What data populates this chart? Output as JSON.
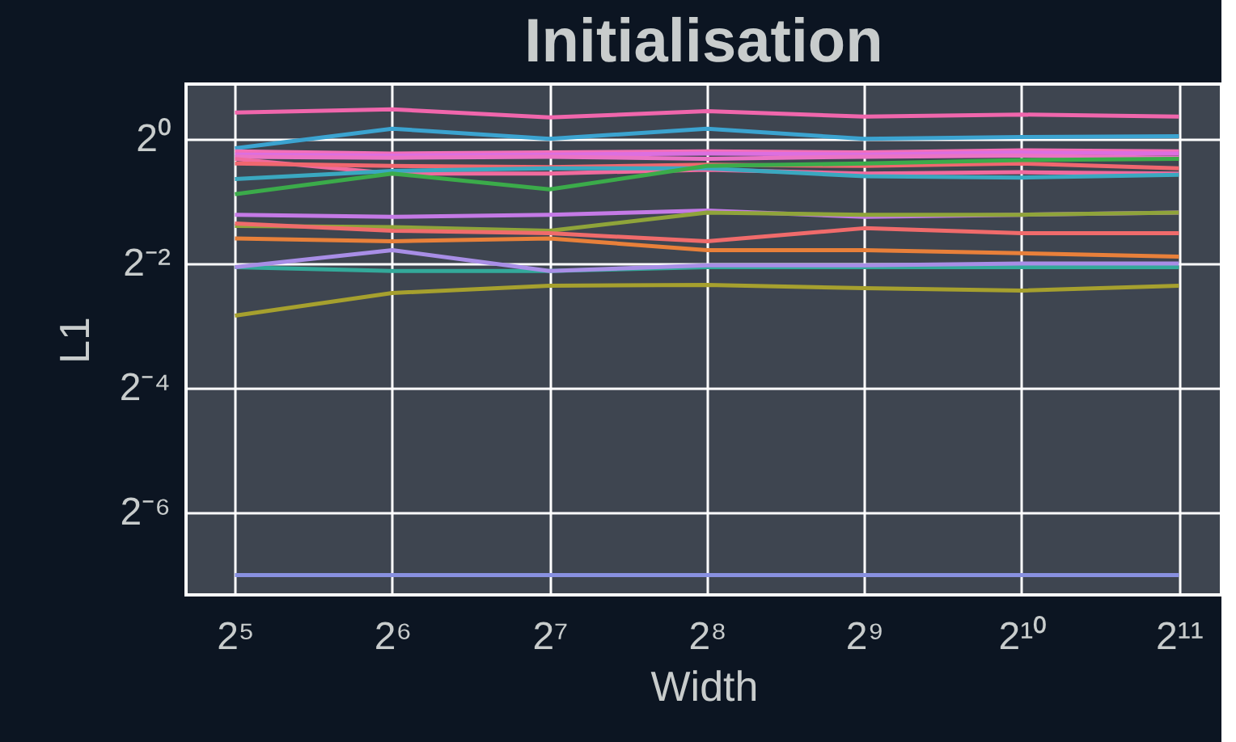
{
  "chart_data": {
    "type": "line",
    "title": "Initialisation",
    "xlabel": "Width",
    "ylabel": "L1",
    "x": [
      32,
      64,
      128,
      256,
      512,
      1024,
      2048
    ],
    "log": "xy",
    "grid": true,
    "legend": false,
    "marker": "none",
    "line_style": "solid",
    "xlim": [
      25.8,
      2470
    ],
    "ylim": [
      0.00626,
      1.84
    ],
    "xticks": [
      {
        "value": 32,
        "label": "2⁵"
      },
      {
        "value": 64,
        "label": "2⁶"
      },
      {
        "value": 128,
        "label": "2⁷"
      },
      {
        "value": 256,
        "label": "2⁸"
      },
      {
        "value": 512,
        "label": "2⁹"
      },
      {
        "value": 1024,
        "label": "2¹⁰"
      },
      {
        "value": 2048,
        "label": "2¹¹"
      }
    ],
    "yticks": [
      {
        "value": 0.015625,
        "label": "2⁻⁶"
      },
      {
        "value": 0.0625,
        "label": "2⁻⁴"
      },
      {
        "value": 0.25,
        "label": "2⁻²"
      },
      {
        "value": 1,
        "label": "2⁰"
      }
    ],
    "series": [
      {
        "color": "#f066ac",
        "values": [
          1.34,
          1.39,
          1.27,
          1.36,
          1.28,
          1.31,
          1.28
        ]
      },
      {
        "color": "#3ba3d0",
        "values": [
          0.9,
          1.12,
          1.0,
          1.12,
          1.0,
          1.02,
          1.03
        ]
      },
      {
        "color": "#f36fb8",
        "values": [
          0.87,
          0.85,
          0.86,
          0.87,
          0.86,
          0.88,
          0.87
        ]
      },
      {
        "color": "#dc6fe0",
        "values": [
          0.84,
          0.83,
          0.84,
          0.85,
          0.84,
          0.86,
          0.85
        ]
      },
      {
        "color": "#ea74c4",
        "values": [
          0.82,
          0.81,
          0.82,
          0.8,
          0.82,
          0.83,
          0.81
        ]
      },
      {
        "color": "#f06b9e",
        "values": [
          0.8,
          0.68,
          0.68,
          0.71,
          0.68,
          0.69,
          0.68
        ]
      },
      {
        "color": "#f0676f",
        "values": [
          0.76,
          0.74,
          0.73,
          0.75,
          0.74,
          0.76,
          0.72
        ]
      },
      {
        "color": "#3aa8c0",
        "values": [
          0.64,
          0.7,
          0.72,
          0.72,
          0.66,
          0.65,
          0.67
        ]
      },
      {
        "color": "#3bab4a",
        "values": [
          0.54,
          0.68,
          0.57,
          0.74,
          0.76,
          0.79,
          0.8
        ]
      },
      {
        "color": "#c47ae6",
        "values": [
          0.43,
          0.42,
          0.43,
          0.45,
          0.42,
          0.43,
          0.44
        ]
      },
      {
        "color": "#8fa43a",
        "values": [
          0.38,
          0.375,
          0.36,
          0.44,
          0.43,
          0.43,
          0.44
        ]
      },
      {
        "color": "#f06b6b",
        "values": [
          0.39,
          0.36,
          0.35,
          0.32,
          0.37,
          0.35,
          0.35
        ]
      },
      {
        "color": "#e8803a",
        "values": [
          0.33,
          0.32,
          0.33,
          0.29,
          0.29,
          0.28,
          0.27
        ]
      },
      {
        "color": "#33a99a",
        "values": [
          0.24,
          0.23,
          0.23,
          0.24,
          0.24,
          0.24,
          0.24
        ]
      },
      {
        "color": "#a88ee6",
        "values": [
          0.24,
          0.29,
          0.23,
          0.245,
          0.245,
          0.25,
          0.25
        ]
      },
      {
        "color": "#a6a02e",
        "values": [
          0.14,
          0.18,
          0.195,
          0.197,
          0.19,
          0.185,
          0.195
        ]
      },
      {
        "color": "#8890e0",
        "values": [
          0.0078,
          0.0078,
          0.0078,
          0.0078,
          0.0078,
          0.0078,
          0.0078
        ]
      }
    ]
  }
}
